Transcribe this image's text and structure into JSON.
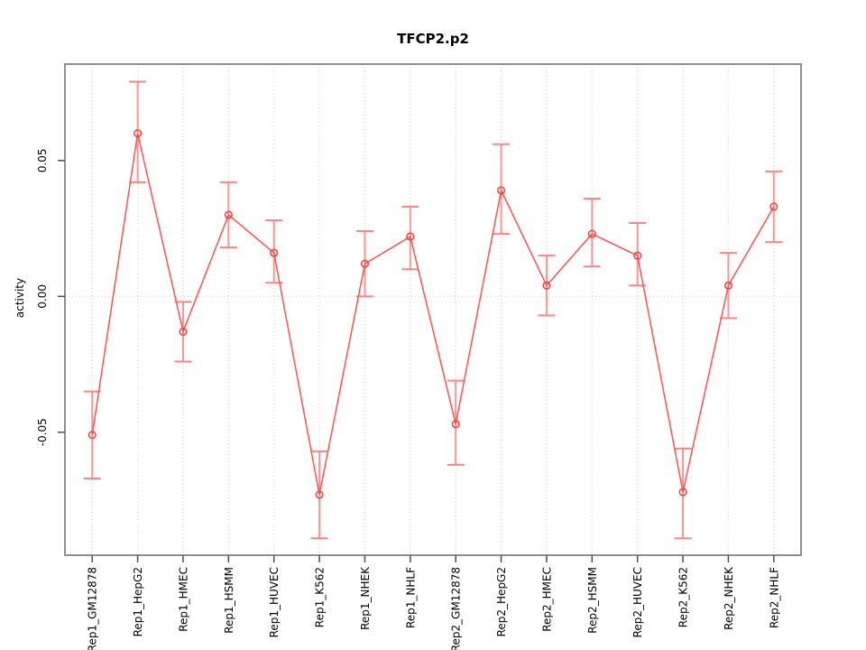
{
  "chart_data": {
    "type": "line",
    "title": "TFCP2.p2",
    "xlabel": "",
    "ylabel": "activity",
    "legend_position": "none",
    "categories": [
      "Rep1_GM12878",
      "Rep1_HepG2",
      "Rep1_HMEC",
      "Rep1_HSMM",
      "Rep1_HUVEC",
      "Rep1_K562",
      "Rep1_NHEK",
      "Rep1_NHLF",
      "Rep2_GM12878",
      "Rep2_HepG2",
      "Rep2_HMEC",
      "Rep2_HSMM",
      "Rep2_HUVEC",
      "Rep2_K562",
      "Rep2_NHEK",
      "Rep2_NHLF"
    ],
    "series": [
      {
        "name": "activity",
        "values": [
          -0.051,
          0.06,
          -0.013,
          0.03,
          0.016,
          -0.073,
          0.012,
          0.022,
          -0.047,
          0.039,
          0.004,
          0.023,
          0.015,
          -0.072,
          0.004,
          0.033
        ],
        "ci_low": [
          -0.067,
          0.042,
          -0.024,
          0.018,
          0.005,
          -0.089,
          0.0,
          0.01,
          -0.062,
          0.023,
          -0.007,
          0.011,
          0.004,
          -0.089,
          -0.008,
          0.02
        ],
        "ci_high": [
          -0.035,
          0.079,
          -0.002,
          0.042,
          0.028,
          -0.057,
          0.024,
          0.033,
          -0.031,
          0.056,
          0.015,
          0.036,
          0.027,
          -0.056,
          0.016,
          0.046
        ]
      }
    ],
    "yticks": [
      {
        "value": -0.05,
        "label": "-0.05"
      },
      {
        "value": 0.0,
        "label": "0.00"
      },
      {
        "value": 0.05,
        "label": "0.05"
      }
    ],
    "ylim": [
      -0.0957,
      0.0857
    ],
    "grid": {
      "vertical": "dotted at each category",
      "horizontal": "dotted at y=0"
    },
    "colors": {
      "series_line": "#ff5252",
      "error_bar": "#ff9494",
      "error_cap": "#ff8585",
      "point_stroke": "#ff3d3d",
      "grid_line": "#d6d6d6",
      "frame": "#8f8f8f",
      "tick": "#4f4f4f",
      "label_text": "#000000",
      "background": "#ffffff"
    }
  }
}
